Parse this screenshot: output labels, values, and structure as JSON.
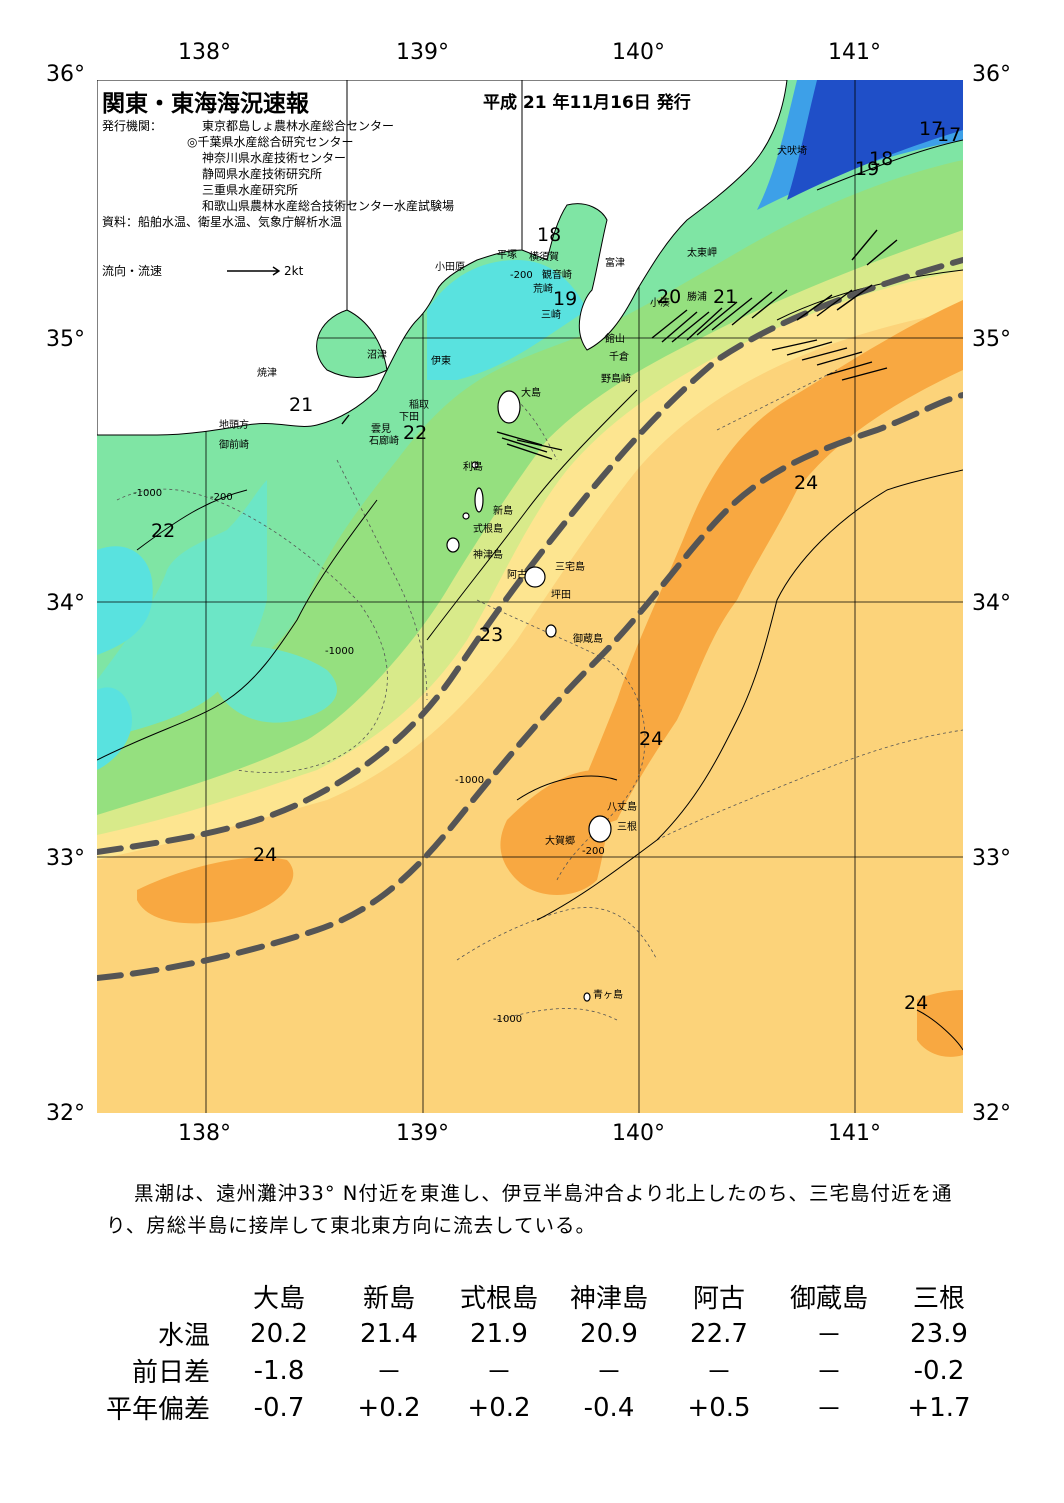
{
  "header": {
    "title": "関東・東海海況速報",
    "date": "平成 21 年11月16日 発行",
    "issuer_label": "発行機関：",
    "issuers": [
      "東京都島しょ農林水産総合センター",
      "◎千葉県水産総合研究センター",
      "神奈川県水産技術センター",
      "静岡県水産技術研究所",
      "三重県水産研究所",
      "和歌山県農林水産総合技術センター水産試験場"
    ],
    "source": "資料：船舶水温、衛星水温、気象庁解析水温",
    "flow_legend": "流向・流速",
    "flow_unit": "2kt"
  },
  "axes": {
    "lat_labels": [
      "36°",
      "35°",
      "34°",
      "33°",
      "32°"
    ],
    "lon_labels": [
      "138°",
      "139°",
      "140°",
      "141°"
    ]
  },
  "isotherm_labels": [
    "17",
    "17",
    "18",
    "18",
    "19",
    "19",
    "20",
    "21",
    "21",
    "22",
    "22",
    "23",
    "24",
    "24",
    "24",
    "24"
  ],
  "depth_labels": [
    "-200",
    "-1000"
  ],
  "place_names": [
    "犬吠埼",
    "太東岬",
    "勝浦",
    "小湊",
    "富津",
    "館山",
    "千倉",
    "野島崎",
    "横須賀",
    "観音崎",
    "荒崎",
    "三崎",
    "平塚",
    "小田原",
    "沼津",
    "伊東",
    "焼津",
    "地頭方",
    "御前崎",
    "稲取",
    "下田",
    "雲見",
    "石廊崎",
    "大島",
    "利島",
    "新島",
    "式根島",
    "神津島",
    "三宅島",
    "阿古",
    "坪田",
    "御蔵島",
    "八丈島",
    "三根",
    "大賀郷",
    "青ヶ島"
  ],
  "colors": {
    "cold_deep": "#1f4fc8",
    "cold": "#3da0e8",
    "cyan": "#59e2df",
    "aqua": "#6ce6c6",
    "mint": "#7fe5a4",
    "green": "#95e07f",
    "yellow_green": "#d8ea8a",
    "yellow": "#fde590",
    "warm": "#fcd37a",
    "warm_core": "#f8a841",
    "land": "#ffffff",
    "kuroshio_axis": "#555555"
  },
  "summary": "黒潮は、遠州灘沖33° N付近を東進し、伊豆半島沖合より北上したのち、三宅島付近を通り、房総半島に接岸して東北東方向に流去している。",
  "table": {
    "columns": [
      "大島",
      "新島",
      "式根島",
      "神津島",
      "阿古",
      "御蔵島",
      "三根"
    ],
    "rows": [
      {
        "label": "水温",
        "values": [
          "20.2",
          "21.4",
          "21.9",
          "20.9",
          "22.7",
          "－",
          "23.9"
        ]
      },
      {
        "label": "前日差",
        "values": [
          "-1.8",
          "－",
          "－",
          "－",
          "－",
          "－",
          "-0.2"
        ]
      },
      {
        "label": "平年偏差",
        "values": [
          "-0.7",
          "+0.2",
          "+0.2",
          "-0.4",
          "+0.5",
          "－",
          "+1.7"
        ]
      }
    ]
  }
}
